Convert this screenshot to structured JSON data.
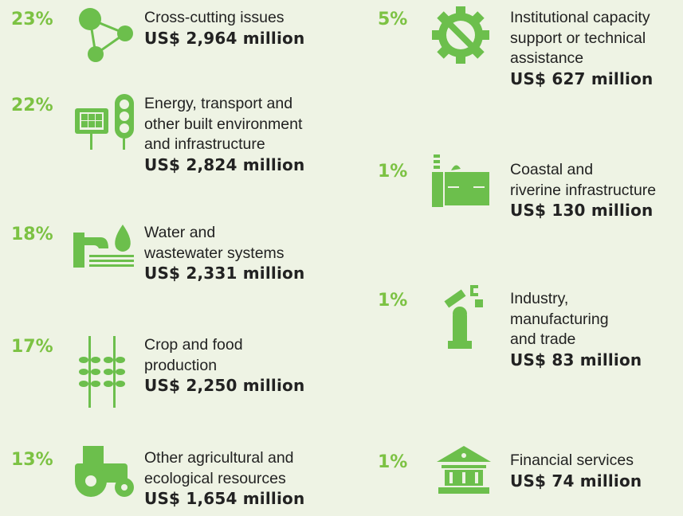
{
  "items": [
    {
      "percent": "23%",
      "label": [
        "Cross-cutting issues"
      ],
      "amount": "US$ 2,964 million"
    },
    {
      "percent": "22%",
      "label": [
        "Energy, transport and",
        "other built environment",
        "and infrastructure"
      ],
      "amount": "US$ 2,824 million"
    },
    {
      "percent": "18%",
      "label": [
        "Water and",
        "wastewater systems"
      ],
      "amount": "US$ 2,331 million"
    },
    {
      "percent": "17%",
      "label": [
        "Crop and food",
        "production"
      ],
      "amount": "US$ 2,250 million"
    },
    {
      "percent": "13%",
      "label": [
        "Other agricultural and",
        "ecological resources"
      ],
      "amount": "US$ 1,654 million"
    },
    {
      "percent": "5%",
      "label": [
        "Institutional capacity",
        "support or technical",
        "assistance"
      ],
      "amount": "US$ 627 million"
    },
    {
      "percent": "1%",
      "label": [
        "Coastal and",
        "riverine infrastructure"
      ],
      "amount": "US$ 130 million"
    },
    {
      "percent": "1%",
      "label": [
        "Industry,",
        "manufacturing",
        "and trade"
      ],
      "amount": "US$ 83 million"
    },
    {
      "percent": "1%",
      "label": [
        "Financial services"
      ],
      "amount": "US$ 74 million"
    }
  ]
}
